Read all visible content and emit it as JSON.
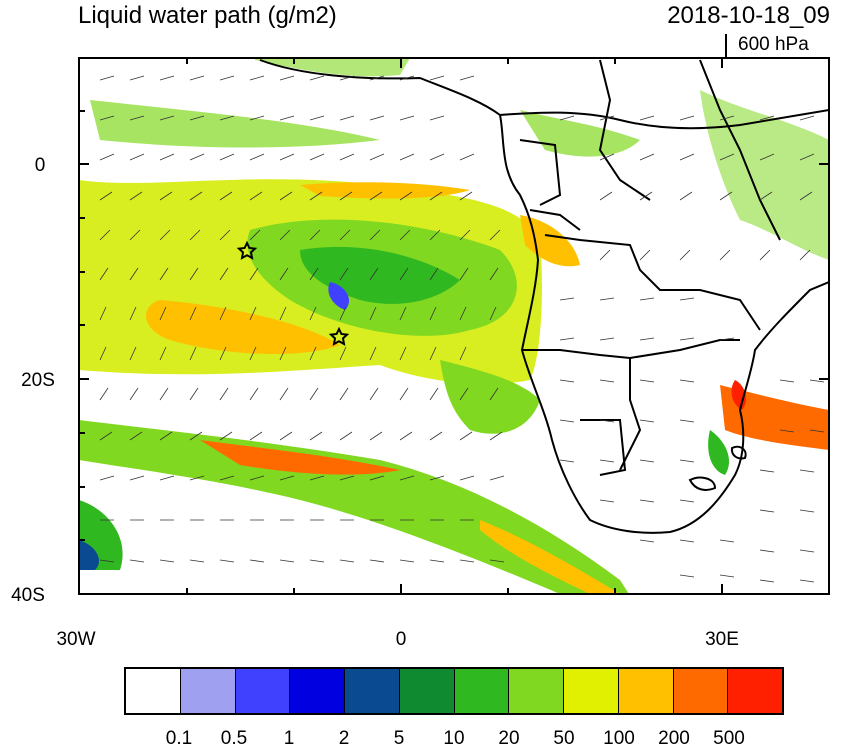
{
  "header": {
    "title": "Liquid water path (g/m2)",
    "datetime": "2018-10-18_09",
    "level": "600 hPa"
  },
  "axes": {
    "y_labels": [
      "0",
      "20S",
      "40S"
    ],
    "x_labels": [
      "30W",
      "0",
      "30E"
    ]
  },
  "markers": {
    "count": 2,
    "shape": "star"
  },
  "colorbar": {
    "colors": [
      "#ffffff",
      "#a0a0f0",
      "#4040ff",
      "#0000e0",
      "#0a4a90",
      "#108a30",
      "#30b820",
      "#80d820",
      "#e0f000",
      "#ffc000",
      "#ff6a00",
      "#ff2000"
    ],
    "labels": [
      "0.1",
      "0.5",
      "1",
      "2",
      "5",
      "10",
      "20",
      "50",
      "100",
      "200",
      "500"
    ]
  }
}
